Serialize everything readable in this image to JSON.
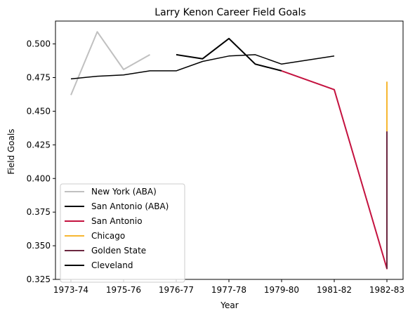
{
  "chart_data": {
    "type": "line",
    "title": "Larry Kenon Career Field Goals",
    "xlabel": "Year",
    "ylabel": "Field Goals",
    "x_tick_labels": [
      "1973-74",
      "1975-76",
      "1976-77",
      "1977-78",
      "1979-80",
      "1981-82",
      "1982-83"
    ],
    "ylim": [
      0.325,
      0.517
    ],
    "y_ticks": [
      0.325,
      0.35,
      0.375,
      0.4,
      0.425,
      0.45,
      0.475,
      0.5
    ],
    "legend_position": "lower-left",
    "grid": false,
    "series": [
      {
        "name": "New York (ABA)",
        "color": "#c0c0c0",
        "width": 2,
        "points": [
          [
            0,
            0.462
          ],
          [
            0.5,
            0.509
          ],
          [
            1,
            0.481
          ],
          [
            1.5,
            0.492
          ]
        ]
      },
      {
        "name": "San Antonio (ABA)",
        "color": "#000000",
        "width": 2,
        "points": [
          [
            2,
            0.492
          ],
          [
            2.5,
            0.489
          ],
          [
            3,
            0.504
          ],
          [
            3.5,
            0.485
          ],
          [
            4,
            0.48
          ]
        ]
      },
      {
        "name": "San Antonio",
        "color": "#c4123f",
        "width": 2,
        "points": [
          [
            4,
            0.48
          ],
          [
            5,
            0.466
          ],
          [
            6,
            0.333
          ],
          [
            6,
            0.435
          ]
        ]
      },
      {
        "name": "Chicago",
        "color": "#f7b731",
        "width": 2,
        "points": [
          [
            6,
            0.472
          ],
          [
            6,
            0.435
          ]
        ]
      },
      {
        "name": "Golden State",
        "color": "#6b2740",
        "width": 2,
        "points": [
          [
            6,
            0.435
          ],
          [
            6,
            0.333
          ]
        ]
      },
      {
        "name": "Cleveland",
        "color": "#000000",
        "width": 1.5,
        "points": [
          [
            0,
            0.474
          ],
          [
            0.5,
            0.476
          ],
          [
            1,
            0.477
          ],
          [
            1.5,
            0.48
          ],
          [
            2,
            0.48
          ],
          [
            2.5,
            0.487
          ],
          [
            3,
            0.491
          ],
          [
            3.5,
            0.492
          ],
          [
            4,
            0.485
          ],
          [
            5,
            0.491
          ]
        ]
      }
    ]
  }
}
